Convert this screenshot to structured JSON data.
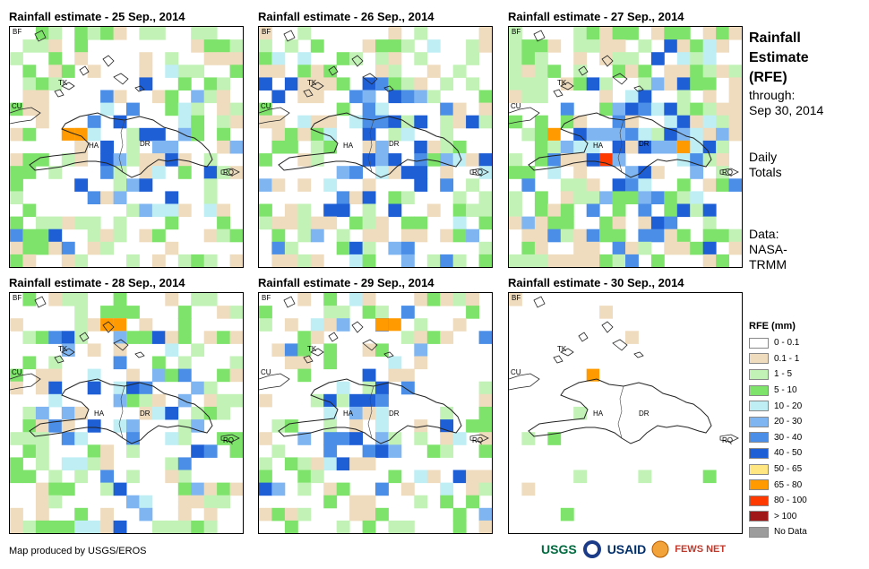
{
  "panels": [
    {
      "title": "Rainfall estimate - 25 Sep., 2014",
      "labels": {
        "bf": "BF",
        "tk": "TK",
        "cu": "CU",
        "ha": "HA",
        "dr": "DR",
        "rq": "RQ"
      },
      "density": 0.45,
      "wet": 0.25,
      "heavy": [
        [
          8,
          4
        ],
        [
          8,
          5
        ]
      ]
    },
    {
      "title": "Rainfall estimate - 26 Sep., 2014",
      "labels": {
        "bf": "BF",
        "tk": "TK",
        "cu": "CU",
        "ha": "HA",
        "dr": "DR",
        "rq": "RQ"
      },
      "density": 0.55,
      "wet": 0.35,
      "heavy": []
    },
    {
      "title": "Rainfall estimate - 27 Sep., 2014",
      "labels": {
        "bf": "BF",
        "tk": "TK",
        "cu": "CU",
        "ha": "HA",
        "dr": "DR",
        "rq": "RQ"
      },
      "density": 0.7,
      "wet": 0.35,
      "heavy": [
        [
          8,
          3
        ],
        [
          10,
          7
        ],
        [
          9,
          13
        ]
      ]
    },
    {
      "title": "Rainfall estimate - 28 Sep., 2014",
      "labels": {
        "bf": "BF",
        "tk": "TK",
        "cu": "CU",
        "ha": "HA",
        "dr": "DR",
        "rq": "RQ"
      },
      "density": 0.5,
      "wet": 0.3,
      "heavy": [
        [
          2,
          7
        ],
        [
          2,
          8
        ]
      ]
    },
    {
      "title": "Rainfall estimate - 29 Sep., 2014",
      "labels": {
        "bf": "BF",
        "tk": "TK",
        "cu": "CU",
        "ha": "HA",
        "dr": "DR",
        "rq": "RQ"
      },
      "density": 0.4,
      "wet": 0.35,
      "heavy": [
        [
          2,
          9
        ],
        [
          2,
          10
        ]
      ]
    },
    {
      "title": "Rainfall estimate - 30 Sep., 2014",
      "labels": {
        "bf": "BF",
        "tk": "TK",
        "cu": "CU",
        "ha": "HA",
        "dr": "DR",
        "rq": "RQ"
      },
      "density": 0.03,
      "wet": 0,
      "heavy": [
        [
          6,
          6
        ]
      ]
    }
  ],
  "side": {
    "title_lines": [
      "Rainfall",
      "Estimate",
      "(RFE)"
    ],
    "through_lines": [
      "through:",
      "Sep 30, 2014"
    ],
    "totals_lines": [
      "Daily",
      "Totals"
    ],
    "data_lines": [
      "Data:",
      "NASA-",
      "TRMM"
    ]
  },
  "legend": {
    "title": "RFE (mm)",
    "items": [
      {
        "label": "0 - 0.1",
        "color": "#ffffff"
      },
      {
        "label": "0.1 - 1",
        "color": "#efdcbf"
      },
      {
        "label": "1 - 5",
        "color": "#c2f2b6"
      },
      {
        "label": "5 - 10",
        "color": "#7ee36a"
      },
      {
        "label": "10 - 20",
        "color": "#bfeef5"
      },
      {
        "label": "20 - 30",
        "color": "#7fb6f2"
      },
      {
        "label": "30 - 40",
        "color": "#4a8ee8"
      },
      {
        "label": "40 - 50",
        "color": "#1f5fd6"
      },
      {
        "label": "50 - 65",
        "color": "#ffe680"
      },
      {
        "label": "65 - 80",
        "color": "#ff9a00"
      },
      {
        "label": "80 - 100",
        "color": "#ff3a00"
      },
      {
        "label": "> 100",
        "color": "#a01818"
      },
      {
        "label": "No Data",
        "color": "#9c9c9c"
      }
    ]
  },
  "credit": "Map produced by USGS/EROS",
  "logos": {
    "usgs": "USGS",
    "usaid": "USAID",
    "fewsnet": "FEWS NET"
  }
}
